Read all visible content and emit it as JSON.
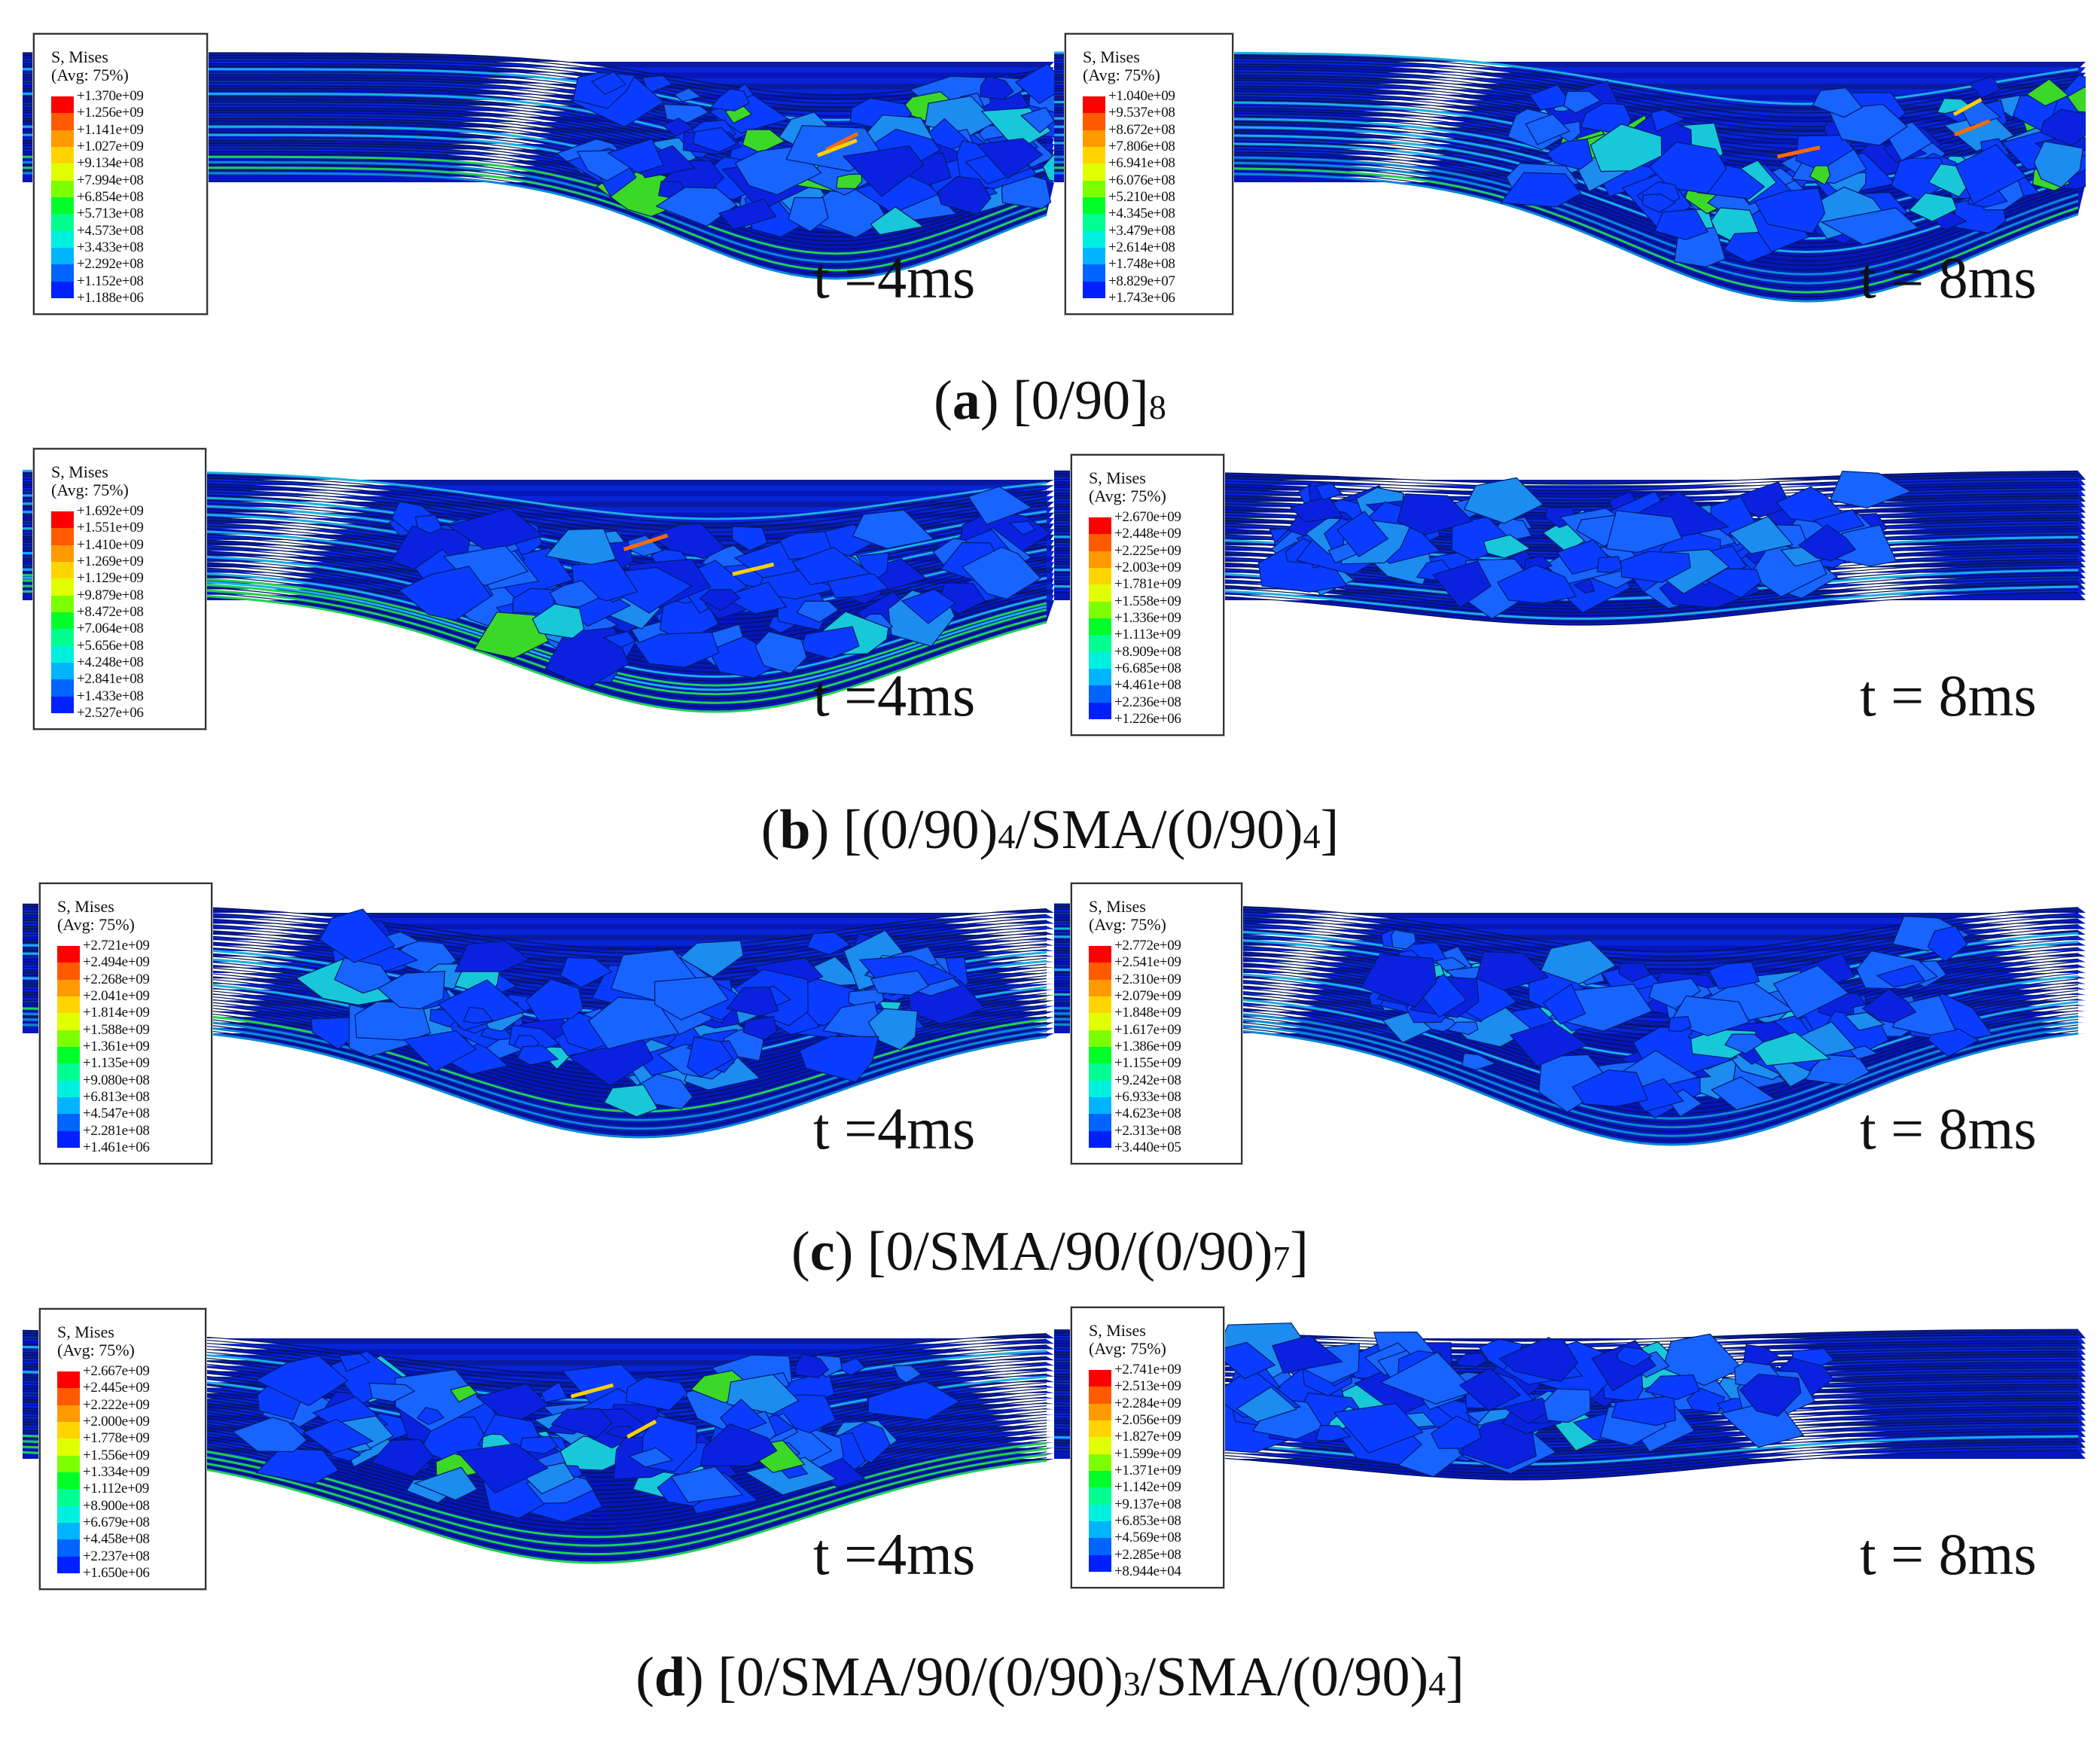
{
  "legend_title": "S, Mises",
  "legend_subtitle": "(Avg: 75%)",
  "legend_colors": [
    "#ff0000",
    "#ff5a00",
    "#ff9a00",
    "#ffd400",
    "#e0ff00",
    "#7cff00",
    "#00ff28",
    "#00ff90",
    "#00f0e0",
    "#00b4ff",
    "#0064ff",
    "#0020ff",
    "#0000ff"
  ],
  "rows": [
    {
      "id": "a",
      "caption": {
        "letter": "a",
        "open": "(",
        "close": ")",
        "parts": [
          {
            "t": "[0/90]"
          },
          {
            "t": "8",
            "sub": true
          }
        ]
      },
      "panels": [
        {
          "time_label": "t =4ms",
          "legend_values": [
            "+1.370e+09",
            "+1.256e+09",
            "+1.141e+09",
            "+1.027e+09",
            "+9.134e+08",
            "+7.994e+08",
            "+6.854e+08",
            "+5.713e+08",
            "+4.573e+08",
            "+3.433e+08",
            "+2.292e+08",
            "+1.152e+08",
            "+1.188e+06"
          ]
        },
        {
          "time_label": "t = 8ms",
          "legend_values": [
            "+1.040e+09",
            "+9.537e+08",
            "+8.672e+08",
            "+7.806e+08",
            "+6.941e+08",
            "+6.076e+08",
            "+5.210e+08",
            "+4.345e+08",
            "+3.479e+08",
            "+2.614e+08",
            "+1.748e+08",
            "+8.829e+07",
            "+1.743e+06"
          ]
        }
      ]
    },
    {
      "id": "b",
      "caption": {
        "letter": "b",
        "open": "(",
        "close": ")",
        "parts": [
          {
            "t": "[(0/90)"
          },
          {
            "t": "4",
            "sub": true
          },
          {
            "t": "/SMA/(0/90)"
          },
          {
            "t": "4",
            "sub": true
          },
          {
            "t": "]"
          }
        ]
      },
      "panels": [
        {
          "time_label": "t =4ms",
          "legend_values": [
            "+1.692e+09",
            "+1.551e+09",
            "+1.410e+09",
            "+1.269e+09",
            "+1.129e+09",
            "+9.879e+08",
            "+8.472e+08",
            "+7.064e+08",
            "+5.656e+08",
            "+4.248e+08",
            "+2.841e+08",
            "+1.433e+08",
            "+2.527e+06"
          ]
        },
        {
          "time_label": "t = 8ms",
          "legend_values": [
            "+2.670e+09",
            "+2.448e+09",
            "+2.225e+09",
            "+2.003e+09",
            "+1.781e+09",
            "+1.558e+09",
            "+1.336e+09",
            "+1.113e+09",
            "+8.909e+08",
            "+6.685e+08",
            "+4.461e+08",
            "+2.236e+08",
            "+1.226e+06"
          ]
        }
      ]
    },
    {
      "id": "c",
      "caption": {
        "letter": "c",
        "open": "(",
        "close": ")",
        "parts": [
          {
            "t": "[0/SMA/90/(0/90)"
          },
          {
            "t": "7",
            "sub": true
          },
          {
            "t": "]"
          }
        ]
      },
      "panels": [
        {
          "time_label": "t =4ms",
          "legend_values": [
            "+2.721e+09",
            "+2.494e+09",
            "+2.268e+09",
            "+2.041e+09",
            "+1.814e+09",
            "+1.588e+09",
            "+1.361e+09",
            "+1.135e+09",
            "+9.080e+08",
            "+6.813e+08",
            "+4.547e+08",
            "+2.281e+08",
            "+1.461e+06"
          ]
        },
        {
          "time_label": "t = 8ms",
          "legend_values": [
            "+2.772e+09",
            "+2.541e+09",
            "+2.310e+09",
            "+2.079e+09",
            "+1.848e+09",
            "+1.617e+09",
            "+1.386e+09",
            "+1.155e+09",
            "+9.242e+08",
            "+6.933e+08",
            "+4.623e+08",
            "+2.313e+08",
            "+3.440e+05"
          ]
        }
      ]
    },
    {
      "id": "d",
      "caption": {
        "letter": "d",
        "open": "(",
        "close": ")",
        "parts": [
          {
            "t": "[0/SMA/90/(0/90)"
          },
          {
            "t": "3",
            "sub": true
          },
          {
            "t": "/SMA/(0/90)"
          },
          {
            "t": "4",
            "sub": true
          },
          {
            "t": "]"
          }
        ]
      },
      "panels": [
        {
          "time_label": "t =4ms",
          "legend_values": [
            "+2.667e+09",
            "+2.445e+09",
            "+2.222e+09",
            "+2.000e+09",
            "+1.778e+09",
            "+1.556e+09",
            "+1.334e+09",
            "+1.112e+09",
            "+8.900e+08",
            "+6.679e+08",
            "+4.458e+08",
            "+2.237e+08",
            "+1.650e+06"
          ]
        },
        {
          "time_label": "t = 8ms",
          "legend_values": [
            "+2.741e+09",
            "+2.513e+09",
            "+2.284e+09",
            "+2.056e+09",
            "+1.827e+09",
            "+1.599e+09",
            "+1.371e+09",
            "+1.142e+09",
            "+9.137e+08",
            "+6.853e+08",
            "+4.569e+08",
            "+2.285e+08",
            "+8.944e+04"
          ]
        }
      ]
    }
  ]
}
